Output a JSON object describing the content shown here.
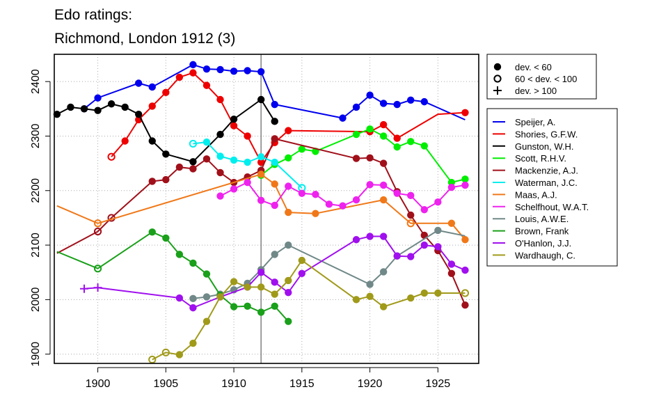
{
  "chart_data": {
    "type": "line",
    "title": "Edo ratings:",
    "subtitle": "Richmond, London 1912 (3)",
    "xlabel": "",
    "ylabel": "",
    "xlim": [
      1896.8,
      1928.0
    ],
    "ylim": [
      1883,
      2450
    ],
    "x_ticks": [
      1900,
      1905,
      1910,
      1915,
      1920,
      1925
    ],
    "y_ticks": [
      1900,
      2000,
      2100,
      2200,
      2300,
      2400
    ],
    "grid": true,
    "vertical_line_x": 1912,
    "marker_legend": [
      {
        "symbol": "filled-circle",
        "label": "dev. < 60"
      },
      {
        "symbol": "open-circle",
        "label": "60 < dev. < 100"
      },
      {
        "symbol": "plus",
        "label": "dev. > 100"
      }
    ],
    "series": [
      {
        "name": "Speijer, A.",
        "color": "#0000ee",
        "points": [
          [
            1899,
            2350,
            "f"
          ],
          [
            1900,
            2370,
            "f"
          ],
          [
            1903,
            2397,
            "f"
          ],
          [
            1904,
            2390,
            "f"
          ],
          [
            1907,
            2431,
            "f"
          ],
          [
            1908,
            2423,
            "f"
          ],
          [
            1909,
            2422,
            "f"
          ],
          [
            1910,
            2419,
            "f"
          ],
          [
            1911,
            2420,
            "f"
          ],
          [
            1912,
            2418,
            "f"
          ],
          [
            1913,
            2358,
            "f"
          ],
          [
            1918,
            2333,
            "f"
          ],
          [
            1919,
            2353,
            "f"
          ],
          [
            1920,
            2375,
            "f"
          ],
          [
            1921,
            2360,
            "f"
          ],
          [
            1922,
            2358,
            "f"
          ],
          [
            1923,
            2366,
            "f"
          ],
          [
            1924,
            2363,
            "f"
          ],
          [
            1927,
            2330,
            "n"
          ]
        ]
      },
      {
        "name": "Shories, G.F.W.",
        "color": "#ee0000",
        "points": [
          [
            1901,
            2262,
            "o"
          ],
          [
            1902,
            2291,
            "f"
          ],
          [
            1903,
            2330,
            "f"
          ],
          [
            1904,
            2355,
            "f"
          ],
          [
            1905,
            2380,
            "f"
          ],
          [
            1906,
            2408,
            "f"
          ],
          [
            1907,
            2416,
            "f"
          ],
          [
            1908,
            2393,
            "f"
          ],
          [
            1909,
            2367,
            "f"
          ],
          [
            1910,
            2319,
            "f"
          ],
          [
            1911,
            2300,
            "f"
          ],
          [
            1912,
            2252,
            "f"
          ],
          [
            1913,
            2288,
            "f"
          ],
          [
            1914,
            2310,
            "f"
          ],
          [
            1920,
            2308,
            "f"
          ],
          [
            1921,
            2321,
            "f"
          ],
          [
            1922,
            2296,
            "f"
          ],
          [
            1925,
            2340,
            "n"
          ],
          [
            1927,
            2343,
            "f"
          ]
        ]
      },
      {
        "name": "Gunston, W.H.",
        "color": "#000000",
        "points": [
          [
            1897,
            2340,
            "f"
          ],
          [
            1898,
            2353,
            "f"
          ],
          [
            1899,
            2350,
            "f"
          ],
          [
            1900,
            2347,
            "f"
          ],
          [
            1901,
            2359,
            "f"
          ],
          [
            1902,
            2353,
            "f"
          ],
          [
            1903,
            2340,
            "f"
          ],
          [
            1904,
            2291,
            "f"
          ],
          [
            1905,
            2267,
            "f"
          ],
          [
            1907,
            2253,
            "f"
          ],
          [
            1909,
            2303,
            "f"
          ],
          [
            1910,
            2331,
            "f"
          ],
          [
            1912,
            2367,
            "f"
          ],
          [
            1913,
            2327,
            "f"
          ]
        ]
      },
      {
        "name": "Scott, R.H.V.",
        "color": "#00ee00",
        "points": [
          [
            1912,
            2228,
            "f"
          ],
          [
            1913,
            2248,
            "f"
          ],
          [
            1914,
            2260,
            "f"
          ],
          [
            1915,
            2276,
            "f"
          ],
          [
            1916,
            2272,
            "f"
          ],
          [
            1919,
            2303,
            "f"
          ],
          [
            1920,
            2313,
            "f"
          ],
          [
            1921,
            2300,
            "f"
          ],
          [
            1922,
            2280,
            "f"
          ],
          [
            1923,
            2290,
            "f"
          ],
          [
            1924,
            2282,
            "f"
          ],
          [
            1926,
            2215,
            "f"
          ],
          [
            1927,
            2221,
            "f"
          ]
        ]
      },
      {
        "name": "Mackenzie, A.J.",
        "color": "#a0101a",
        "points": [
          [
            1897,
            2085,
            "n"
          ],
          [
            1900,
            2125,
            "o"
          ],
          [
            1901,
            2150,
            "o"
          ],
          [
            1904,
            2217,
            "f"
          ],
          [
            1905,
            2220,
            "f"
          ],
          [
            1906,
            2243,
            "f"
          ],
          [
            1907,
            2240,
            "f"
          ],
          [
            1908,
            2258,
            "f"
          ],
          [
            1909,
            2233,
            "f"
          ],
          [
            1910,
            2215,
            "f"
          ],
          [
            1911,
            2225,
            "f"
          ],
          [
            1912,
            2237,
            "f"
          ],
          [
            1913,
            2295,
            "f"
          ],
          [
            1919,
            2259,
            "f"
          ],
          [
            1920,
            2260,
            "f"
          ],
          [
            1921,
            2250,
            "f"
          ],
          [
            1922,
            2198,
            "f"
          ],
          [
            1923,
            2155,
            "f"
          ],
          [
            1924,
            2118,
            "f"
          ],
          [
            1925,
            2090,
            "f"
          ],
          [
            1926,
            2048,
            "f"
          ],
          [
            1927,
            1990,
            "f"
          ]
        ]
      },
      {
        "name": "Waterman, J.C.",
        "color": "#00eeee",
        "points": [
          [
            1907,
            2286,
            "o"
          ],
          [
            1908,
            2289,
            "f"
          ],
          [
            1909,
            2263,
            "f"
          ],
          [
            1910,
            2256,
            "f"
          ],
          [
            1911,
            2252,
            "f"
          ],
          [
            1912,
            2262,
            "f"
          ],
          [
            1913,
            2252,
            "f"
          ],
          [
            1915,
            2205,
            "o"
          ]
        ]
      },
      {
        "name": "Maas, A.J.",
        "color": "#f07818",
        "points": [
          [
            1897,
            2172,
            "n"
          ],
          [
            1900,
            2140,
            "o"
          ],
          [
            1912,
            2230,
            "f"
          ],
          [
            1913,
            2212,
            "f"
          ],
          [
            1914,
            2160,
            "f"
          ],
          [
            1916,
            2158,
            "f"
          ],
          [
            1921,
            2183,
            "f"
          ],
          [
            1923,
            2140,
            "o"
          ],
          [
            1926,
            2140,
            "f"
          ],
          [
            1927,
            2110,
            "f"
          ]
        ]
      },
      {
        "name": "Schelfhout, W.A.T.",
        "color": "#ee22ee",
        "points": [
          [
            1909,
            2190,
            "f"
          ],
          [
            1910,
            2203,
            "f"
          ],
          [
            1911,
            2215,
            "f"
          ],
          [
            1912,
            2182,
            "f"
          ],
          [
            1913,
            2173,
            "f"
          ],
          [
            1914,
            2208,
            "f"
          ],
          [
            1915,
            2195,
            "f"
          ],
          [
            1916,
            2193,
            "f"
          ],
          [
            1917,
            2175,
            "f"
          ],
          [
            1918,
            2172,
            "f"
          ],
          [
            1919,
            2183,
            "f"
          ],
          [
            1920,
            2211,
            "f"
          ],
          [
            1921,
            2210,
            "f"
          ],
          [
            1922,
            2195,
            "f"
          ],
          [
            1923,
            2191,
            "f"
          ],
          [
            1924,
            2165,
            "f"
          ],
          [
            1925,
            2179,
            "f"
          ],
          [
            1926,
            2206,
            "f"
          ],
          [
            1927,
            2210,
            "f"
          ]
        ]
      },
      {
        "name": "Louis, A.W.E.",
        "color": "#708888",
        "points": [
          [
            1907,
            2002,
            "f"
          ],
          [
            1908,
            2005,
            "f"
          ],
          [
            1909,
            2010,
            "f"
          ],
          [
            1910,
            2018,
            "f"
          ],
          [
            1911,
            2030,
            "f"
          ],
          [
            1912,
            2055,
            "f"
          ],
          [
            1913,
            2083,
            "f"
          ],
          [
            1914,
            2100,
            "f"
          ],
          [
            1920,
            2028,
            "f"
          ],
          [
            1921,
            2051,
            "f"
          ],
          [
            1922,
            2080,
            "f"
          ],
          [
            1925,
            2127,
            "f"
          ],
          [
            1927,
            2117,
            "n"
          ]
        ]
      },
      {
        "name": "Brown, Frank",
        "color": "#1aa01a",
        "points": [
          [
            1897,
            2088,
            "n"
          ],
          [
            1900,
            2057,
            "o"
          ],
          [
            1904,
            2124,
            "f"
          ],
          [
            1905,
            2113,
            "f"
          ],
          [
            1906,
            2083,
            "f"
          ],
          [
            1907,
            2067,
            "f"
          ],
          [
            1908,
            2047,
            "f"
          ],
          [
            1909,
            2008,
            "f"
          ],
          [
            1910,
            1987,
            "f"
          ],
          [
            1911,
            1988,
            "f"
          ],
          [
            1912,
            1977,
            "f"
          ],
          [
            1913,
            1988,
            "f"
          ],
          [
            1914,
            1960,
            "f"
          ]
        ]
      },
      {
        "name": "O'Hanlon, J.J.",
        "color": "#a010ee",
        "points": [
          [
            1899,
            2020,
            "p"
          ],
          [
            1900,
            2022,
            "p"
          ],
          [
            1906,
            2003,
            "f"
          ],
          [
            1907,
            1985,
            "f"
          ],
          [
            1909,
            2005,
            "f"
          ],
          [
            1911,
            2023,
            "f"
          ],
          [
            1912,
            2050,
            "f"
          ],
          [
            1913,
            2032,
            "f"
          ],
          [
            1914,
            2013,
            "f"
          ],
          [
            1915,
            2048,
            "f"
          ],
          [
            1919,
            2110,
            "f"
          ],
          [
            1920,
            2116,
            "f"
          ],
          [
            1921,
            2116,
            "f"
          ],
          [
            1922,
            2080,
            "f"
          ],
          [
            1923,
            2079,
            "f"
          ],
          [
            1924,
            2100,
            "f"
          ],
          [
            1925,
            2097,
            "f"
          ],
          [
            1926,
            2065,
            "f"
          ],
          [
            1927,
            2054,
            "f"
          ]
        ]
      },
      {
        "name": "Wardhaugh, C.",
        "color": "#a09a1a",
        "points": [
          [
            1904,
            1890,
            "o"
          ],
          [
            1905,
            1903,
            "o"
          ],
          [
            1906,
            1899,
            "f"
          ],
          [
            1907,
            1920,
            "f"
          ],
          [
            1908,
            1960,
            "f"
          ],
          [
            1909,
            2005,
            "f"
          ],
          [
            1910,
            2033,
            "f"
          ],
          [
            1911,
            2023,
            "f"
          ],
          [
            1912,
            2023,
            "f"
          ],
          [
            1913,
            2010,
            "f"
          ],
          [
            1914,
            2035,
            "f"
          ],
          [
            1915,
            2072,
            "f"
          ],
          [
            1919,
            2000,
            "f"
          ],
          [
            1920,
            2006,
            "f"
          ],
          [
            1921,
            1987,
            "f"
          ],
          [
            1923,
            2003,
            "f"
          ],
          [
            1924,
            2012,
            "f"
          ],
          [
            1925,
            2012,
            "f"
          ],
          [
            1927,
            2012,
            "o"
          ]
        ]
      }
    ]
  }
}
